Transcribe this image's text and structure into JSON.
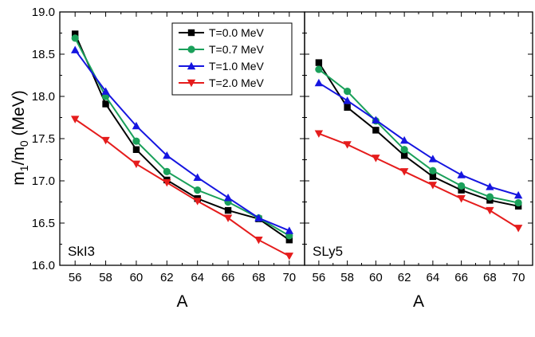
{
  "chart_data": {
    "type": "line",
    "ylabel": "m₁/m₀ (MeV)",
    "ylim": [
      16.0,
      19.0
    ],
    "yticks": [
      "16.0",
      "16.5",
      "17.0",
      "17.5",
      "18.0",
      "18.5",
      "19.0"
    ],
    "xlim": [
      55,
      71
    ],
    "xticks": [
      "56",
      "58",
      "60",
      "62",
      "64",
      "66",
      "68",
      "70"
    ],
    "legend": {
      "placement": "top-right of left panel"
    },
    "x": [
      56,
      58,
      60,
      62,
      64,
      66,
      68,
      70
    ],
    "series_style": [
      {
        "color": "#000000",
        "marker": "square"
      },
      {
        "color": "#1aa05a",
        "marker": "circle"
      },
      {
        "color": "#1515e0",
        "marker": "triangle-up"
      },
      {
        "color": "#e51c1c",
        "marker": "triangle-down"
      }
    ],
    "panels": [
      {
        "label": "SkI3",
        "xlabel": "A",
        "series": [
          {
            "name": "T=0.0 MeV",
            "values": [
              18.74,
              17.91,
              17.37,
              17.01,
              16.79,
              16.65,
              16.55,
              16.3
            ]
          },
          {
            "name": "T=0.7 MeV",
            "values": [
              18.69,
              18.0,
              17.47,
              17.11,
              16.89,
              16.75,
              16.56,
              16.35
            ]
          },
          {
            "name": "T=1.0 MeV",
            "values": [
              18.55,
              18.06,
              17.65,
              17.3,
              17.04,
              16.8,
              16.56,
              16.41
            ]
          },
          {
            "name": "T=2.0 MeV",
            "values": [
              17.73,
              17.48,
              17.2,
              16.98,
              16.76,
              16.56,
              16.3,
              16.11
            ]
          }
        ]
      },
      {
        "label": "SLy5",
        "xlabel": "A",
        "series": [
          {
            "name": "T=0.0 MeV",
            "values": [
              18.4,
              17.87,
              17.6,
              17.3,
              17.05,
              16.89,
              16.77,
              16.7
            ]
          },
          {
            "name": "T=0.7 MeV",
            "values": [
              18.32,
              18.06,
              17.71,
              17.37,
              17.12,
              16.94,
              16.81,
              16.74
            ]
          },
          {
            "name": "T=1.0 MeV",
            "values": [
              18.16,
              17.95,
              17.72,
              17.48,
              17.26,
              17.07,
              16.93,
              16.83
            ]
          },
          {
            "name": "T=2.0 MeV",
            "values": [
              17.56,
              17.43,
              17.27,
              17.11,
              16.95,
              16.79,
              16.65,
              16.44
            ]
          }
        ]
      }
    ]
  }
}
